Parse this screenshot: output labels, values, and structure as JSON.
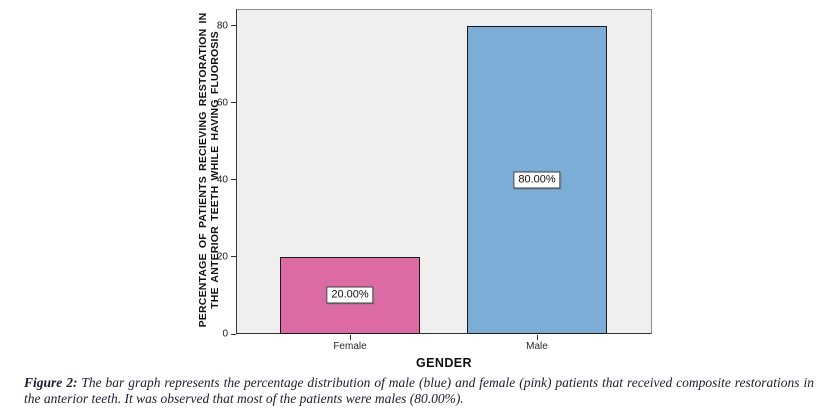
{
  "chart_data": {
    "type": "bar",
    "categories": [
      "Female",
      "Male"
    ],
    "values": [
      20,
      80
    ],
    "bar_labels": [
      "20.00%",
      "80.00%"
    ],
    "bar_colors": [
      "#dd6ba3",
      "#7badd6"
    ],
    "title": "",
    "xlabel": "GENDER",
    "ylabel_line1": "PERCENTAGE OF PATIENTS RECIEVING RESTORATION IN",
    "ylabel_line2": "THE ANTERIOR TEETH WHILE HAVING FLUOROSIS",
    "yticks": [
      0,
      20,
      40,
      60,
      80
    ],
    "ylim": [
      0,
      84.4
    ],
    "grid": false,
    "legend_position": "none",
    "plot_background": "#efefef",
    "bar_border_color": "#1a1a1a"
  },
  "caption": {
    "label": "Figure 2:",
    "line1_rest": " The bar graph represents the percentage distribution of male (blue) and female (pink) patients that received composite restorations in",
    "line2": "the anterior teeth. It was observed that most of the patients were males (80.00%)."
  }
}
